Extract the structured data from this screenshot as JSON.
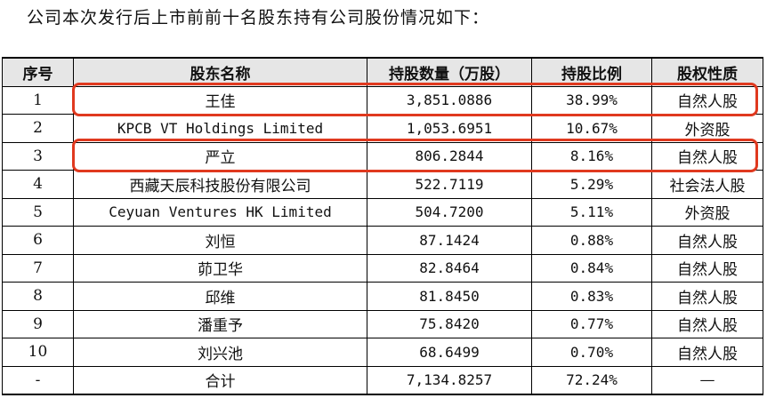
{
  "intro": "公司本次发行后上市前前十名股东持有公司股份情况如下：",
  "table": {
    "headers": [
      "序号",
      "股东名称",
      "持股数量（万股）",
      "持股比例",
      "股权性质"
    ],
    "rows": [
      {
        "no": "1",
        "name": "王佳",
        "shares": "3,851.0886",
        "ratio": "38.99%",
        "type": "自然人股",
        "highlighted": true
      },
      {
        "no": "2",
        "name": "KPCB VT Holdings Limited",
        "shares": "1,053.6951",
        "ratio": "10.67%",
        "type": "外资股",
        "highlighted": false
      },
      {
        "no": "3",
        "name": "严立",
        "shares": "806.2844",
        "ratio": "8.16%",
        "type": "自然人股",
        "highlighted": true
      },
      {
        "no": "4",
        "name": "西藏天辰科技股份有限公司",
        "shares": "522.7119",
        "ratio": "5.29%",
        "type": "社会法人股",
        "highlighted": false
      },
      {
        "no": "5",
        "name": "Ceyuan Ventures HK Limited",
        "shares": "504.7200",
        "ratio": "5.11%",
        "type": "外资股",
        "highlighted": false
      },
      {
        "no": "6",
        "name": "刘恒",
        "shares": "87.1424",
        "ratio": "0.88%",
        "type": "自然人股",
        "highlighted": false
      },
      {
        "no": "7",
        "name": "茆卫华",
        "shares": "82.8464",
        "ratio": "0.84%",
        "type": "自然人股",
        "highlighted": false
      },
      {
        "no": "8",
        "name": "邱维",
        "shares": "81.8450",
        "ratio": "0.83%",
        "type": "自然人股",
        "highlighted": false
      },
      {
        "no": "9",
        "name": "潘重予",
        "shares": "75.8420",
        "ratio": "0.77%",
        "type": "自然人股",
        "highlighted": false
      },
      {
        "no": "10",
        "name": "刘兴池",
        "shares": "68.6499",
        "ratio": "0.70%",
        "type": "自然人股",
        "highlighted": false
      }
    ],
    "total": {
      "no": "-",
      "name": "合计",
      "shares": "7,134.8257",
      "ratio": "72.24%",
      "type": "—"
    }
  },
  "highlight_color": "#e0391f"
}
